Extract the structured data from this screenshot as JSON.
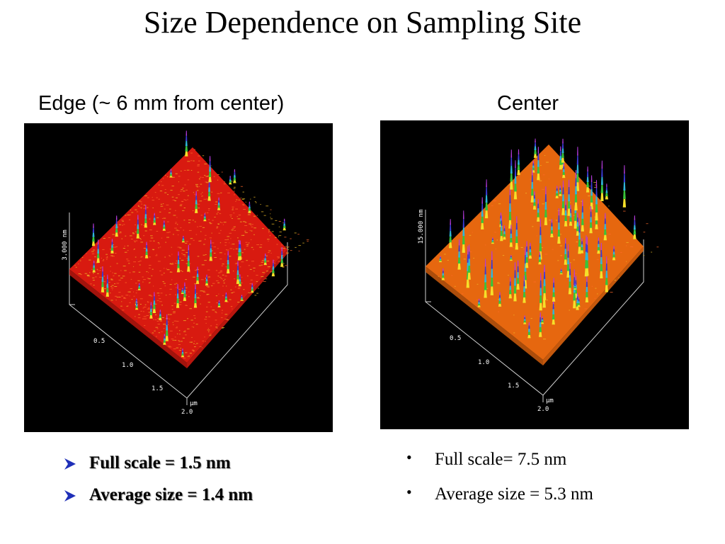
{
  "slide": {
    "title": "Size Dependence on Sampling Site"
  },
  "left_panel": {
    "label": "Edge (~ 6 mm from center)",
    "z_axis_label": "3.000 nm",
    "x_ticks": [
      "0.5",
      "1.0",
      "1.5",
      "2.0"
    ],
    "unit_label": "µm",
    "surface_color": "#d81a10",
    "bullets": [
      {
        "text": "Full scale = 1.5 nm"
      },
      {
        "text": "Average size = 1.4 nm"
      }
    ]
  },
  "right_panel": {
    "label": "Center",
    "z_axis_label": "15.000 nm",
    "x_ticks": [
      "0.5",
      "1.0",
      "1.5",
      "2.0"
    ],
    "unit_label": "µm",
    "surface_color": "#e6670f",
    "bullets": [
      {
        "text": "Full scale= 7.5 nm"
      },
      {
        "text": "Average size = 5.3 nm"
      }
    ]
  },
  "colors": {
    "bullet_arrow": "#1f2fb8",
    "image_background": "#000000"
  }
}
